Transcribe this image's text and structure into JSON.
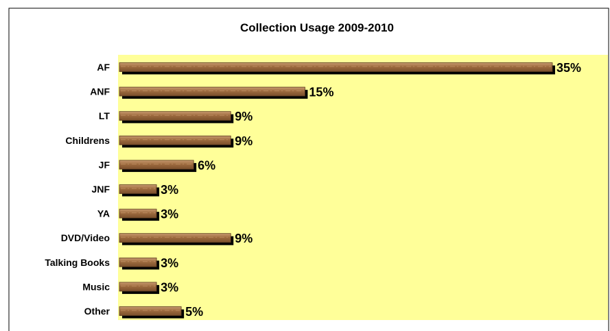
{
  "chart_data": {
    "type": "bar",
    "orientation": "horizontal",
    "title": "Collection Usage 2009-2010",
    "xlabel": "",
    "ylabel": "",
    "categories": [
      "AF",
      "ANF",
      "LT",
      "Childrens",
      "JF",
      "JNF",
      "YA",
      "DVD/Video",
      "Talking Books",
      "Music",
      "Other"
    ],
    "values": [
      35,
      15,
      9,
      9,
      6,
      3,
      3,
      9,
      3,
      3,
      5
    ],
    "value_labels": [
      "35%",
      "15%",
      "9%",
      "9%",
      "6%",
      "3%",
      "3%",
      "9%",
      "3%",
      "3%",
      "5%"
    ],
    "xlim": [
      0,
      36
    ],
    "grid": false,
    "legend": "none",
    "colors": {
      "plot_background": "#ffff99",
      "bar_fill": "#9c6a3e",
      "bar_highlight": "#c89a6e",
      "bar_shadow": "#000000"
    }
  }
}
